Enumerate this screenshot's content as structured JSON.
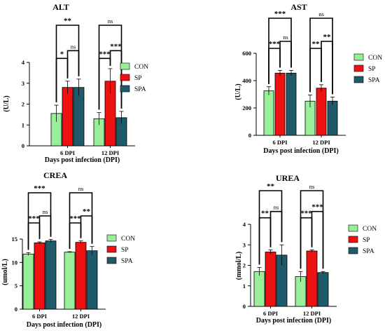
{
  "colors": {
    "CON": "#99ee99",
    "SP": "#ee1111",
    "SPA": "#1f5a6a"
  },
  "chart_data": [
    {
      "type": "bar",
      "title": "ALT",
      "xlabel": "Days post infection (DPI)",
      "ylabel": "(U/L)",
      "categories": [
        "6 DPI",
        "12 DPI"
      ],
      "ylim": [
        0,
        4
      ],
      "yticks": [
        "0",
        "1",
        "2",
        "3",
        "4"
      ],
      "series": [
        {
          "name": "CON",
          "values": [
            1.55,
            1.3
          ],
          "errors": [
            0.4,
            0.3
          ]
        },
        {
          "name": "SP",
          "values": [
            2.8,
            3.1
          ],
          "errors": [
            0.3,
            0.6
          ]
        },
        {
          "name": "SPA",
          "values": [
            2.8,
            1.35
          ],
          "errors": [
            0.4,
            0.3
          ]
        }
      ],
      "annotations": [
        {
          "group": 0,
          "pair": [
            "CON",
            "SP"
          ],
          "label": "*"
        },
        {
          "group": 0,
          "pair": [
            "SP",
            "SPA"
          ],
          "label": "ns"
        },
        {
          "group": 0,
          "pair": [
            "CON",
            "SPA"
          ],
          "label": "**"
        },
        {
          "group": 1,
          "pair": [
            "SP",
            "SPA"
          ],
          "label": "***"
        },
        {
          "group": 1,
          "pair": [
            "CON",
            "SP"
          ],
          "label": "***"
        },
        {
          "group": 1,
          "pair": [
            "CON",
            "SPA"
          ],
          "label": "ns"
        }
      ]
    },
    {
      "type": "bar",
      "title": "AST",
      "xlabel": "Days post infection (DPI)",
      "ylabel": "(U/L)",
      "categories": [
        "6 DPI",
        "12 DPI"
      ],
      "ylim": [
        0,
        600
      ],
      "yticks": [
        "0",
        "200",
        "400",
        "600"
      ],
      "series": [
        {
          "name": "CON",
          "values": [
            325,
            250
          ],
          "errors": [
            30,
            45
          ]
        },
        {
          "name": "SP",
          "values": [
            455,
            345
          ],
          "errors": [
            20,
            25
          ]
        },
        {
          "name": "SPA",
          "values": [
            455,
            250
          ],
          "errors": [
            20,
            30
          ]
        }
      ],
      "annotations": [
        {
          "group": 0,
          "pair": [
            "CON",
            "SP"
          ],
          "label": "***"
        },
        {
          "group": 0,
          "pair": [
            "SP",
            "SPA"
          ],
          "label": "ns"
        },
        {
          "group": 0,
          "pair": [
            "CON",
            "SPA"
          ],
          "label": "***"
        },
        {
          "group": 1,
          "pair": [
            "SP",
            "SPA"
          ],
          "label": "**"
        },
        {
          "group": 1,
          "pair": [
            "CON",
            "SP"
          ],
          "label": "**"
        },
        {
          "group": 1,
          "pair": [
            "CON",
            "SPA"
          ],
          "label": "ns"
        }
      ]
    },
    {
      "type": "bar",
      "title": "CREA",
      "xlabel": "Days post infection (DPI)",
      "ylabel": "(umol/L)",
      "categories": [
        "6 DPI",
        "12 DPI"
      ],
      "ylim": [
        0,
        15
      ],
      "yticks": [
        "0",
        "5",
        "10",
        "15"
      ],
      "series": [
        {
          "name": "CON",
          "values": [
            11.8,
            12.2
          ],
          "errors": [
            0.3,
            0.1
          ]
        },
        {
          "name": "SP",
          "values": [
            14.2,
            14.3
          ],
          "errors": [
            0.2,
            0.3
          ]
        },
        {
          "name": "SPA",
          "values": [
            14.6,
            12.5
          ],
          "errors": [
            0.3,
            0.9
          ]
        }
      ],
      "annotations": [
        {
          "group": 0,
          "pair": [
            "CON",
            "SP"
          ],
          "label": "***"
        },
        {
          "group": 0,
          "pair": [
            "SP",
            "SPA"
          ],
          "label": "ns"
        },
        {
          "group": 0,
          "pair": [
            "CON",
            "SPA"
          ],
          "label": "***"
        },
        {
          "group": 1,
          "pair": [
            "SP",
            "SPA"
          ],
          "label": "**"
        },
        {
          "group": 1,
          "pair": [
            "CON",
            "SP"
          ],
          "label": "***"
        },
        {
          "group": 1,
          "pair": [
            "CON",
            "SPA"
          ],
          "label": "ns"
        }
      ]
    },
    {
      "type": "bar",
      "title": "UREA",
      "xlabel": "Days post infection (DPI)",
      "ylabel": "(mmol/L)",
      "categories": [
        "6 DPI",
        "12 DPI"
      ],
      "ylim": [
        0,
        4
      ],
      "yticks": [
        "0",
        "1",
        "2",
        "3",
        "4"
      ],
      "series": [
        {
          "name": "CON",
          "values": [
            1.7,
            1.45
          ],
          "errors": [
            0.2,
            0.25
          ]
        },
        {
          "name": "SP",
          "values": [
            2.65,
            2.7
          ],
          "errors": [
            0.1,
            0.05
          ]
        },
        {
          "name": "SPA",
          "values": [
            2.5,
            1.65
          ],
          "errors": [
            0.5,
            0.05
          ]
        }
      ],
      "annotations": [
        {
          "group": 0,
          "pair": [
            "CON",
            "SP"
          ],
          "label": "**"
        },
        {
          "group": 0,
          "pair": [
            "SP",
            "SPA"
          ],
          "label": "ns"
        },
        {
          "group": 0,
          "pair": [
            "CON",
            "SPA"
          ],
          "label": "**"
        },
        {
          "group": 1,
          "pair": [
            "SP",
            "SPA"
          ],
          "label": "***"
        },
        {
          "group": 1,
          "pair": [
            "CON",
            "SP"
          ],
          "label": "***"
        },
        {
          "group": 1,
          "pair": [
            "CON",
            "SPA"
          ],
          "label": "ns"
        }
      ]
    }
  ]
}
